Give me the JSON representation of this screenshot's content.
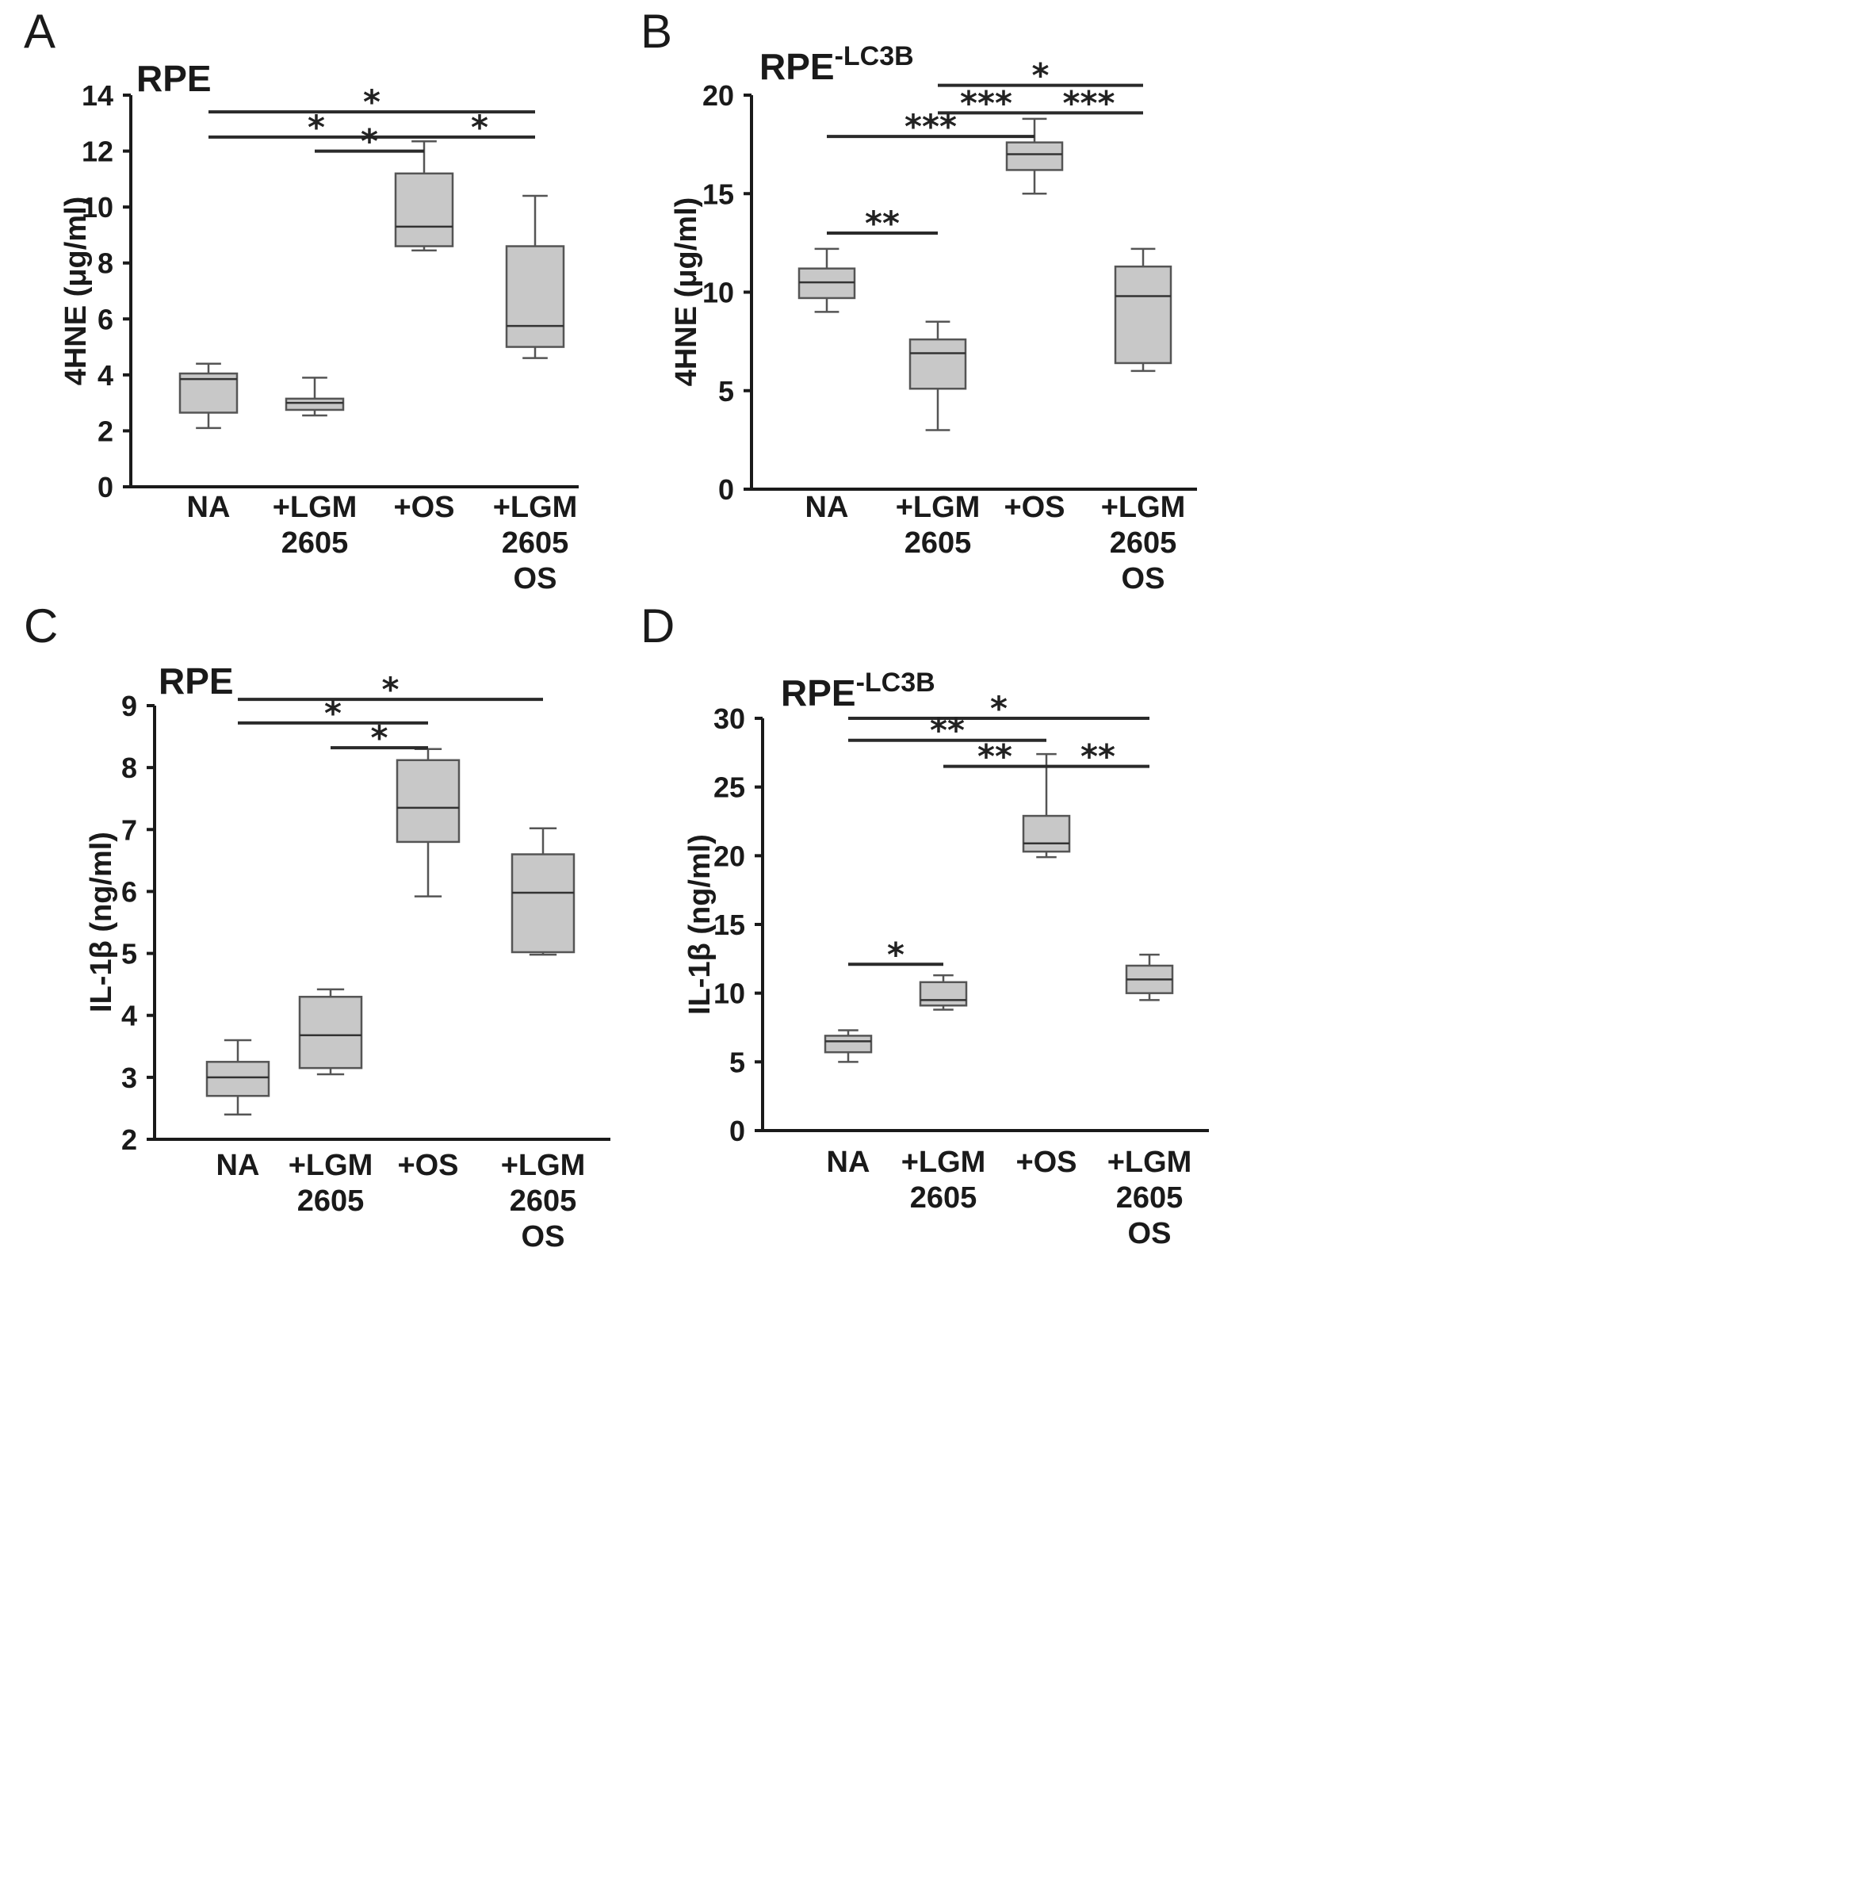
{
  "chart_data": [
    {
      "panel": "A",
      "type": "box",
      "title": "RPE",
      "title_sup": "",
      "ylabel": "4HNE (μg/ml)",
      "ylim": [
        0,
        14
      ],
      "yticks": [
        0,
        2,
        4,
        6,
        8,
        10,
        12,
        14
      ],
      "categories": [
        [
          "NA"
        ],
        [
          "+LGM",
          "2605"
        ],
        [
          "+OS"
        ],
        [
          "+LGM",
          "2605",
          "OS"
        ]
      ],
      "boxes": [
        {
          "min": 2.1,
          "q1": 2.65,
          "median": 3.85,
          "q3": 4.05,
          "max": 4.4
        },
        {
          "min": 2.55,
          "q1": 2.75,
          "median": 3.0,
          "q3": 3.15,
          "max": 3.9
        },
        {
          "min": 8.45,
          "q1": 8.6,
          "median": 9.3,
          "q3": 11.2,
          "max": 12.35
        },
        {
          "min": 4.6,
          "q1": 5.0,
          "median": 5.75,
          "q3": 8.6,
          "max": 10.4
        }
      ],
      "significance": [
        {
          "from": 0,
          "to": 3,
          "y": 13.4,
          "label": "*"
        },
        {
          "from": 0,
          "to": 2,
          "y": 12.5,
          "label": "*"
        },
        {
          "from": 1,
          "to": 2,
          "y": 12.0,
          "label": "*"
        },
        {
          "from": 2,
          "to": 3,
          "y": 12.5,
          "label": "*"
        }
      ]
    },
    {
      "panel": "B",
      "type": "box",
      "title": "RPE",
      "title_sup": "-LC3B",
      "ylabel": "4HNE (μg/ml)",
      "ylim": [
        0,
        20
      ],
      "yticks": [
        0,
        5,
        10,
        15,
        20
      ],
      "categories": [
        [
          "NA"
        ],
        [
          "+LGM",
          "2605"
        ],
        [
          "+OS"
        ],
        [
          "+LGM",
          "2605",
          "OS"
        ]
      ],
      "boxes": [
        {
          "min": 9.0,
          "q1": 9.7,
          "median": 10.5,
          "q3": 11.2,
          "max": 12.2
        },
        {
          "min": 3.0,
          "q1": 5.1,
          "median": 6.9,
          "q3": 7.6,
          "max": 8.5
        },
        {
          "min": 15.0,
          "q1": 16.2,
          "median": 17.0,
          "q3": 17.6,
          "max": 18.8
        },
        {
          "min": 6.0,
          "q1": 6.4,
          "median": 9.8,
          "q3": 11.3,
          "max": 12.2
        }
      ],
      "significance": [
        {
          "from": 1,
          "to": 3,
          "y": 20.5,
          "label": "*"
        },
        {
          "from": 1,
          "to": 2,
          "y": 19.1,
          "label": "***"
        },
        {
          "from": 2,
          "to": 3,
          "y": 19.1,
          "label": "***"
        },
        {
          "from": 0,
          "to": 2,
          "y": 17.9,
          "label": "***"
        },
        {
          "from": 0,
          "to": 1,
          "y": 13.0,
          "label": "**"
        }
      ]
    },
    {
      "panel": "C",
      "type": "box",
      "title": "RPE",
      "title_sup": "",
      "ylabel": "IL-1β (ng/ml)",
      "ylim": [
        2,
        9
      ],
      "yticks": [
        2,
        3,
        4,
        5,
        6,
        7,
        8,
        9
      ],
      "categories": [
        [
          "NA"
        ],
        [
          "+LGM",
          "2605"
        ],
        [
          "+OS"
        ],
        [
          "+LGM",
          "2605",
          "OS"
        ]
      ],
      "boxes": [
        {
          "min": 2.4,
          "q1": 2.7,
          "median": 3.0,
          "q3": 3.25,
          "max": 3.6
        },
        {
          "min": 3.05,
          "q1": 3.15,
          "median": 3.68,
          "q3": 4.3,
          "max": 4.42
        },
        {
          "min": 5.92,
          "q1": 6.8,
          "median": 7.35,
          "q3": 8.12,
          "max": 8.3
        },
        {
          "min": 4.98,
          "q1": 5.02,
          "median": 5.98,
          "q3": 6.6,
          "max": 7.02
        }
      ],
      "significance": [
        {
          "from": 0,
          "to": 3,
          "y": 9.1,
          "label": "*"
        },
        {
          "from": 0,
          "to": 2,
          "y": 8.72,
          "label": "*"
        },
        {
          "from": 1,
          "to": 2,
          "y": 8.32,
          "label": "*"
        }
      ]
    },
    {
      "panel": "D",
      "type": "box",
      "title": "RPE",
      "title_sup": "-LC3B",
      "ylabel": "IL-1β (ng/ml)",
      "ylim": [
        0,
        30
      ],
      "yticks": [
        0,
        5,
        10,
        15,
        20,
        25,
        30
      ],
      "categories": [
        [
          "NA"
        ],
        [
          "+LGM",
          "2605"
        ],
        [
          "+OS"
        ],
        [
          "+LGM",
          "2605",
          "OS"
        ]
      ],
      "boxes": [
        {
          "min": 5.0,
          "q1": 5.7,
          "median": 6.5,
          "q3": 6.9,
          "max": 7.3
        },
        {
          "min": 8.8,
          "q1": 9.1,
          "median": 9.5,
          "q3": 10.8,
          "max": 11.3
        },
        {
          "min": 19.9,
          "q1": 20.3,
          "median": 20.9,
          "q3": 22.9,
          "max": 27.4
        },
        {
          "min": 9.5,
          "q1": 10.0,
          "median": 11.0,
          "q3": 12.0,
          "max": 12.8
        }
      ],
      "significance": [
        {
          "from": 0,
          "to": 3,
          "y": 30.0,
          "label": "*"
        },
        {
          "from": 0,
          "to": 2,
          "y": 28.4,
          "label": "**"
        },
        {
          "from": 1,
          "to": 2,
          "y": 26.5,
          "label": "**"
        },
        {
          "from": 2,
          "to": 3,
          "y": 26.5,
          "label": "**"
        },
        {
          "from": 0,
          "to": 1,
          "y": 12.1,
          "label": "*"
        }
      ]
    }
  ]
}
